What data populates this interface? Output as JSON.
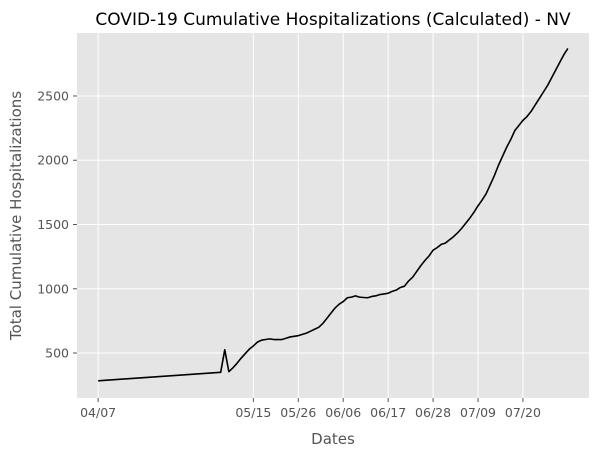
{
  "chart_data": {
    "type": "line",
    "title": "COVID-19 Cumulative Hospitalizations (Calculated) - NV",
    "xlabel": "Dates",
    "ylabel": "Total Cumulative Hospitalizations",
    "x_tick_labels": [
      "04/07",
      "05/15",
      "05/26",
      "06/06",
      "06/17",
      "06/28",
      "07/09",
      "07/20"
    ],
    "y_ticks": [
      500,
      1000,
      1500,
      2000,
      2500
    ],
    "ylim": [
      150,
      2990
    ],
    "grid": true,
    "legend": "none",
    "colors": {
      "background": "#e5e5e5",
      "grid": "#ffffff",
      "line": "#000000",
      "text": "#555555",
      "title": "#000000"
    },
    "series": [
      {
        "x": [
          "04/07",
          "05/07",
          "05/08",
          "05/09",
          "05/10",
          "05/11",
          "05/12",
          "05/13",
          "05/14",
          "05/15",
          "05/16",
          "05/17",
          "05/18",
          "05/19",
          "05/20",
          "05/21",
          "05/22",
          "05/23",
          "05/24",
          "05/25",
          "05/26",
          "05/27",
          "05/28",
          "05/29",
          "05/30",
          "05/31",
          "06/01",
          "06/02",
          "06/03",
          "06/04",
          "06/05",
          "06/06",
          "06/07",
          "06/08",
          "06/09",
          "06/10",
          "06/11",
          "06/12",
          "06/13",
          "06/14",
          "06/15",
          "06/16",
          "06/17",
          "06/18",
          "06/19",
          "06/20",
          "06/21",
          "06/22",
          "06/23",
          "06/24",
          "06/25",
          "06/26",
          "06/27",
          "06/28",
          "06/29",
          "06/30",
          "07/01",
          "07/02",
          "07/03",
          "07/04",
          "07/05",
          "07/06",
          "07/07",
          "07/08",
          "07/09",
          "07/10",
          "07/11",
          "07/12",
          "07/13",
          "07/14",
          "07/15",
          "07/16",
          "07/17",
          "07/18",
          "07/19",
          "07/20",
          "07/21",
          "07/22",
          "07/23",
          "07/24",
          "07/25",
          "07/26",
          "07/27",
          "07/28",
          "07/29",
          "07/30",
          "07/31"
        ],
        "values": [
          284,
          350,
          525,
          355,
          385,
          420,
          460,
          495,
          530,
          555,
          585,
          600,
          605,
          610,
          605,
          605,
          605,
          615,
          625,
          630,
          635,
          645,
          655,
          670,
          685,
          700,
          730,
          770,
          810,
          850,
          880,
          900,
          930,
          935,
          945,
          935,
          932,
          930,
          940,
          945,
          955,
          960,
          965,
          980,
          990,
          1010,
          1020,
          1060,
          1090,
          1135,
          1180,
          1220,
          1255,
          1300,
          1320,
          1345,
          1355,
          1380,
          1405,
          1435,
          1470,
          1510,
          1550,
          1595,
          1645,
          1690,
          1740,
          1810,
          1880,
          1960,
          2030,
          2100,
          2160,
          2230,
          2270,
          2310,
          2340,
          2380,
          2430,
          2480,
          2530,
          2580,
          2640,
          2700,
          2760,
          2820,
          2870
        ]
      }
    ]
  }
}
